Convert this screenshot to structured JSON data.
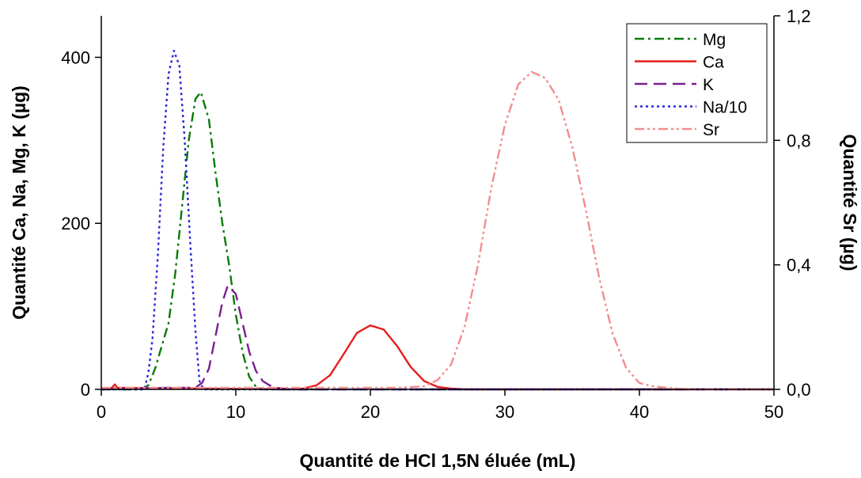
{
  "chart_data": {
    "type": "line",
    "xlabel": "Quantité de HCl 1,5N éluée (mL)",
    "ylabel": "Quantité Ca, Na, Mg, K (µg)",
    "y2label": "Quantité Sr (µg)",
    "xlim": [
      0,
      50
    ],
    "ylim": [
      0,
      450
    ],
    "y2lim": [
      0,
      1.2
    ],
    "xticks": [
      0,
      10,
      20,
      30,
      40,
      50
    ],
    "xtick_labels": [
      "0",
      "10",
      "20",
      "30",
      "40",
      "50"
    ],
    "yticks": [
      0,
      200,
      400
    ],
    "ytick_labels": [
      "0",
      "200",
      "400"
    ],
    "y2ticks": [
      0,
      0.4,
      0.8,
      1.2
    ],
    "y2tick_labels": [
      "0,0",
      "0,4",
      "0,8",
      "1,2"
    ],
    "grid": false,
    "legend_position": "top-right",
    "series": [
      {
        "name": "Mg",
        "axis": "left",
        "color": "#0a7a0a",
        "style": "dashdot",
        "x": [
          0,
          3,
          3.5,
          4,
          5,
          5.5,
          6,
          6.5,
          7,
          7.4,
          8,
          8.5,
          9,
          9.5,
          10,
          10.5,
          11,
          11.5,
          12,
          50
        ],
        "y": [
          0,
          0,
          5,
          25,
          80,
          140,
          220,
          300,
          350,
          358,
          325,
          260,
          200,
          150,
          90,
          45,
          15,
          3,
          0,
          0
        ]
      },
      {
        "name": "Ca",
        "axis": "left",
        "color": "#e61e1e",
        "style": "solid",
        "x": [
          0,
          0.8,
          1,
          1.2,
          14,
          15,
          16,
          17,
          18,
          19,
          20,
          21,
          22,
          23,
          24,
          25,
          26,
          27,
          50
        ],
        "y": [
          0,
          2,
          6,
          2,
          0,
          1,
          5,
          17,
          42,
          68,
          77,
          72,
          52,
          27,
          10,
          3,
          1,
          0,
          0
        ]
      },
      {
        "name": "K",
        "axis": "left",
        "color": "#7a1f8e",
        "style": "dashed",
        "x": [
          0,
          5,
          7,
          7.5,
          8,
          8.5,
          9,
          9.4,
          10,
          10.5,
          11,
          11.5,
          12,
          12.5,
          13,
          14,
          50
        ],
        "y": [
          0,
          2,
          2,
          8,
          25,
          65,
          105,
          125,
          115,
          80,
          45,
          22,
          10,
          5,
          2,
          0,
          0
        ]
      },
      {
        "name": "Na/10",
        "axis": "left",
        "color": "#2a2ad6",
        "style": "dotted",
        "x": [
          0,
          3.2,
          3.5,
          3.8,
          4.2,
          4.6,
          5,
          5.4,
          5.8,
          6.2,
          6.6,
          7,
          7.3,
          7.6,
          50
        ],
        "y": [
          0,
          0,
          20,
          60,
          160,
          290,
          380,
          408,
          390,
          300,
          180,
          70,
          10,
          0,
          0
        ]
      },
      {
        "name": "Sr",
        "axis": "right",
        "color": "#f28d8d",
        "style": "dashdotdot",
        "x": [
          0,
          22,
          24,
          25,
          26,
          27,
          28,
          29,
          30,
          31,
          32,
          33,
          34,
          35,
          36,
          37,
          38,
          39,
          40,
          41,
          42,
          44,
          50
        ],
        "y": [
          0.005,
          0.005,
          0.01,
          0.03,
          0.08,
          0.2,
          0.4,
          0.65,
          0.85,
          0.98,
          1.02,
          1.0,
          0.93,
          0.78,
          0.58,
          0.36,
          0.18,
          0.07,
          0.02,
          0.01,
          0.005,
          0,
          0
        ]
      }
    ]
  }
}
